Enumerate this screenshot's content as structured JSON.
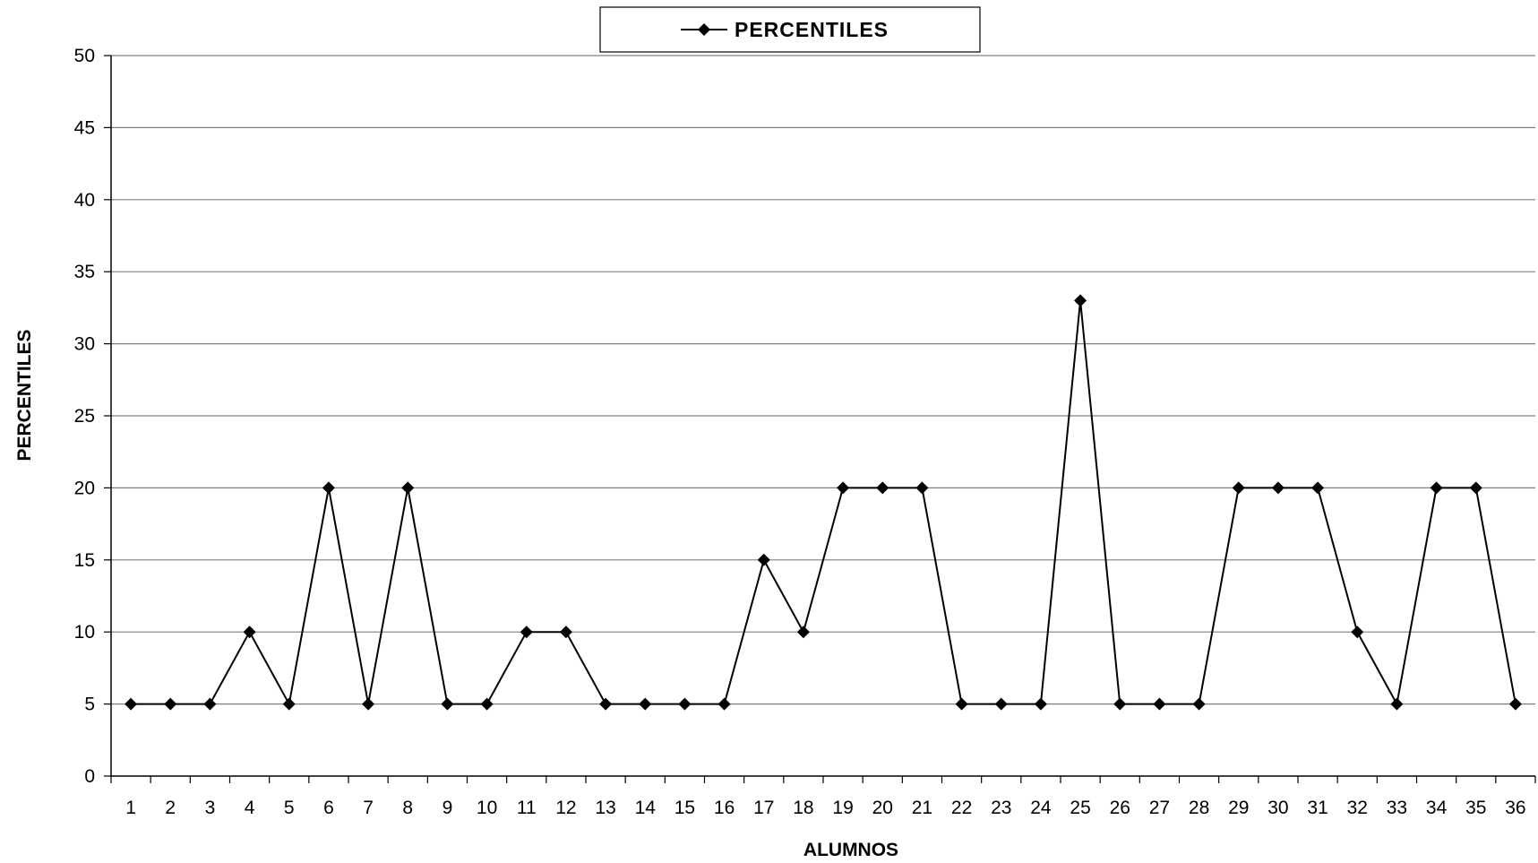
{
  "chart_data": {
    "type": "line",
    "xlabel": "ALUMNOS",
    "ylabel": "PERCENTILES",
    "ylim": [
      0,
      50
    ],
    "yticks": [
      0,
      5,
      10,
      15,
      20,
      25,
      30,
      35,
      40,
      45,
      50
    ],
    "grid": true,
    "legend": "top-center",
    "categories": [
      "1",
      "2",
      "3",
      "4",
      "5",
      "6",
      "7",
      "8",
      "9",
      "10",
      "11",
      "12",
      "13",
      "14",
      "15",
      "16",
      "17",
      "18",
      "19",
      "20",
      "21",
      "22",
      "23",
      "24",
      "25",
      "26",
      "27",
      "28",
      "29",
      "30",
      "31",
      "32",
      "33",
      "34",
      "35",
      "36"
    ],
    "series": [
      {
        "name": "PERCENTILES",
        "color": "#000000",
        "marker": "diamond",
        "values": [
          5,
          5,
          5,
          10,
          5,
          20,
          5,
          20,
          5,
          5,
          10,
          10,
          5,
          5,
          5,
          5,
          15,
          10,
          20,
          20,
          20,
          5,
          5,
          5,
          33,
          5,
          5,
          5,
          20,
          20,
          20,
          10,
          5,
          20,
          20,
          5
        ]
      }
    ]
  }
}
